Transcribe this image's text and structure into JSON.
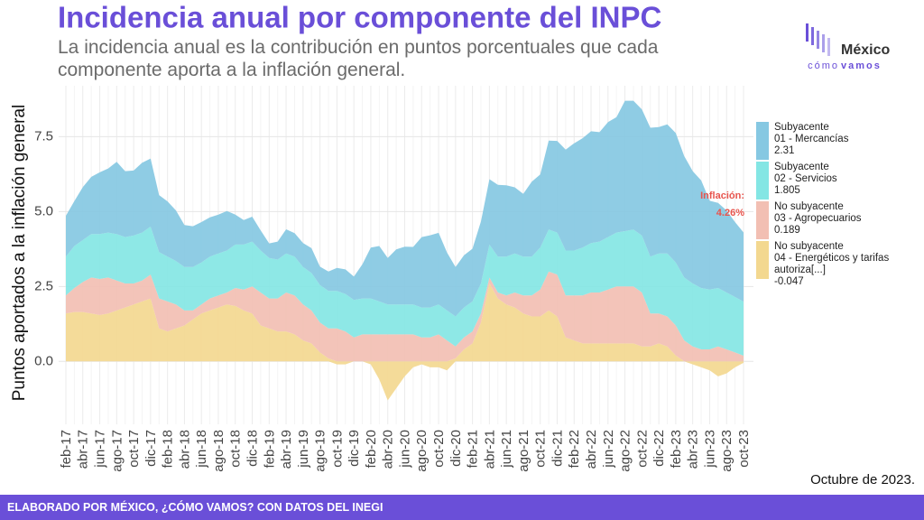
{
  "chart_data": {
    "type": "stacked_area",
    "title": "Incidencia anual por componente del INPC",
    "subtitle": "La incidencia anual es la contribución en puntos porcentuales que cada componente aporta a la inflación general.",
    "y_axis_label": "Puntos aportados a la inflación general",
    "categories": [
      "feb-17",
      null,
      "abr-17",
      null,
      "jun-17",
      null,
      "ago-17",
      null,
      "oct-17",
      null,
      "dic-17",
      null,
      "feb-18",
      null,
      "abr-18",
      null,
      "jun-18",
      null,
      "ago-18",
      null,
      "oct-18",
      null,
      "dic-18",
      null,
      "feb-19",
      null,
      "abr-19",
      null,
      "jun-19",
      null,
      "ago-19",
      null,
      "oct-19",
      null,
      "dic-19",
      null,
      "feb-20",
      null,
      "abr-20",
      null,
      "jun-20",
      null,
      "ago-20",
      null,
      "oct-20",
      null,
      "dic-20",
      null,
      "feb-21",
      null,
      "abr-21",
      null,
      "jun-21",
      null,
      "ago-21",
      null,
      "oct-21",
      null,
      "dic-21",
      null,
      "feb-22",
      null,
      "abr-22",
      null,
      "jun-22",
      null,
      "ago-22",
      null,
      "oct-22",
      null,
      "dic-22",
      null,
      "feb-23",
      null,
      "abr-23",
      null,
      "jun-23",
      null,
      "ago-23",
      null,
      "oct-23"
    ],
    "series": [
      {
        "name": "Subyacente\n01 - Mercancías",
        "color": "#86c8e2",
        "values": [
          1.36,
          1.5,
          1.77,
          1.91,
          2.06,
          2.14,
          2.41,
          2.2,
          2.17,
          2.33,
          2.27,
          1.9,
          1.84,
          1.69,
          1.4,
          1.36,
          1.35,
          1.31,
          1.3,
          1.32,
          1.0,
          0.82,
          0.83,
          0.67,
          0.49,
          0.6,
          0.81,
          0.78,
          0.8,
          0.83,
          0.61,
          0.65,
          0.77,
          0.82,
          0.78,
          1.14,
          1.7,
          1.85,
          1.55,
          1.84,
          1.93,
          1.92,
          2.35,
          2.41,
          2.39,
          1.93,
          1.65,
          1.74,
          1.76,
          2.07,
          2.18,
          2.39,
          2.38,
          2.21,
          2.09,
          2.5,
          2.44,
          2.97,
          3.06,
          3.37,
          3.58,
          3.65,
          3.73,
          3.65,
          3.84,
          3.85,
          4.35,
          4.3,
          4.21,
          4.3,
          4.22,
          4.31,
          4.32,
          4.05,
          3.75,
          3.59,
          2.96,
          2.84,
          2.74,
          2.5,
          2.31
        ]
      },
      {
        "name": "Subyacente\n02 - Servicios",
        "color": "#84e6e4",
        "values": [
          1.3,
          1.4,
          1.4,
          1.45,
          1.5,
          1.5,
          1.55,
          1.55,
          1.6,
          1.6,
          1.6,
          1.55,
          1.5,
          1.45,
          1.45,
          1.45,
          1.4,
          1.4,
          1.4,
          1.4,
          1.45,
          1.5,
          1.5,
          1.4,
          1.35,
          1.3,
          1.3,
          1.3,
          1.25,
          1.25,
          1.25,
          1.25,
          1.25,
          1.25,
          1.25,
          1.2,
          1.2,
          1.1,
          1.0,
          1.0,
          1.0,
          1.0,
          1.0,
          1.0,
          1.0,
          1.0,
          1.0,
          1.0,
          1.0,
          1.0,
          1.1,
          1.2,
          1.3,
          1.3,
          1.3,
          1.3,
          1.4,
          1.4,
          1.4,
          1.5,
          1.5,
          1.6,
          1.65,
          1.7,
          1.75,
          1.8,
          1.85,
          1.9,
          1.9,
          1.9,
          2.0,
          2.1,
          2.1,
          2.1,
          2.1,
          2.05,
          2.0,
          1.95,
          1.9,
          1.85,
          1.805
        ]
      },
      {
        "name": "No subyacente\n03 - Agropecuarios",
        "color": "#f2bfb3",
        "values": [
          0.6,
          0.8,
          1.0,
          1.2,
          1.2,
          1.2,
          1.0,
          0.8,
          0.7,
          0.7,
          0.8,
          1.0,
          1.0,
          0.8,
          0.5,
          0.3,
          0.3,
          0.4,
          0.4,
          0.4,
          0.6,
          0.7,
          0.9,
          1.1,
          1.0,
          1.1,
          1.3,
          1.3,
          1.2,
          1.1,
          1.0,
          1.0,
          1.1,
          1.0,
          0.8,
          0.9,
          0.9,
          0.9,
          0.9,
          0.9,
          0.9,
          0.9,
          0.8,
          0.8,
          0.9,
          0.7,
          0.4,
          0.4,
          0.4,
          0.3,
          0.2,
          0.2,
          0.3,
          0.5,
          0.6,
          0.7,
          0.9,
          1.3,
          1.4,
          1.4,
          1.5,
          1.6,
          1.7,
          1.7,
          1.8,
          1.9,
          1.9,
          1.9,
          1.8,
          1.1,
          1.0,
          1.0,
          1.0,
          0.7,
          0.5,
          0.4,
          0.4,
          0.5,
          0.4,
          0.3,
          0.189
        ]
      },
      {
        "name": "No subyacente\n04 - Energéticos y tarifas\nautoriza[...]",
        "color": "#f3d890",
        "values": [
          1.6,
          1.65,
          1.65,
          1.6,
          1.55,
          1.6,
          1.7,
          1.8,
          1.9,
          2.0,
          2.1,
          1.1,
          1.0,
          1.1,
          1.2,
          1.4,
          1.6,
          1.7,
          1.8,
          1.9,
          1.85,
          1.7,
          1.6,
          1.2,
          1.1,
          1.0,
          1.0,
          0.9,
          0.7,
          0.6,
          0.3,
          0.1,
          -0.1,
          -0.1,
          0.0,
          0.0,
          -0.1,
          -0.6,
          -1.3,
          -0.9,
          -0.5,
          -0.2,
          -0.1,
          -0.2,
          -0.2,
          -0.3,
          0.1,
          0.4,
          0.6,
          1.3,
          2.6,
          2.1,
          1.9,
          1.8,
          1.6,
          1.5,
          1.5,
          1.7,
          1.5,
          0.8,
          0.7,
          0.6,
          0.6,
          0.6,
          0.6,
          0.6,
          0.6,
          0.6,
          0.5,
          0.5,
          0.6,
          0.5,
          0.2,
          0.0,
          -0.1,
          -0.2,
          -0.3,
          -0.5,
          -0.4,
          -0.2,
          -0.047
        ]
      }
    ],
    "ylim": [
      -2.1,
      9.2
    ],
    "yticks": [
      {
        "value": 0,
        "label": "0.0"
      },
      2.5,
      {
        "value": 5,
        "label": "5.0"
      },
      7.5
    ],
    "grid": true,
    "annotations": [
      {
        "label": "Inflación:",
        "value": 4.26,
        "value_label": "4.26%"
      }
    ],
    "note": "Octubre de 2023.",
    "footer": "ELABORADO POR MÉXICO, ¿CÓMO VAMOS? CON DATOS DEL INEGI",
    "logo": {
      "name": "México",
      "tagline_1": "cómo",
      "tagline_2": "vamos"
    }
  }
}
